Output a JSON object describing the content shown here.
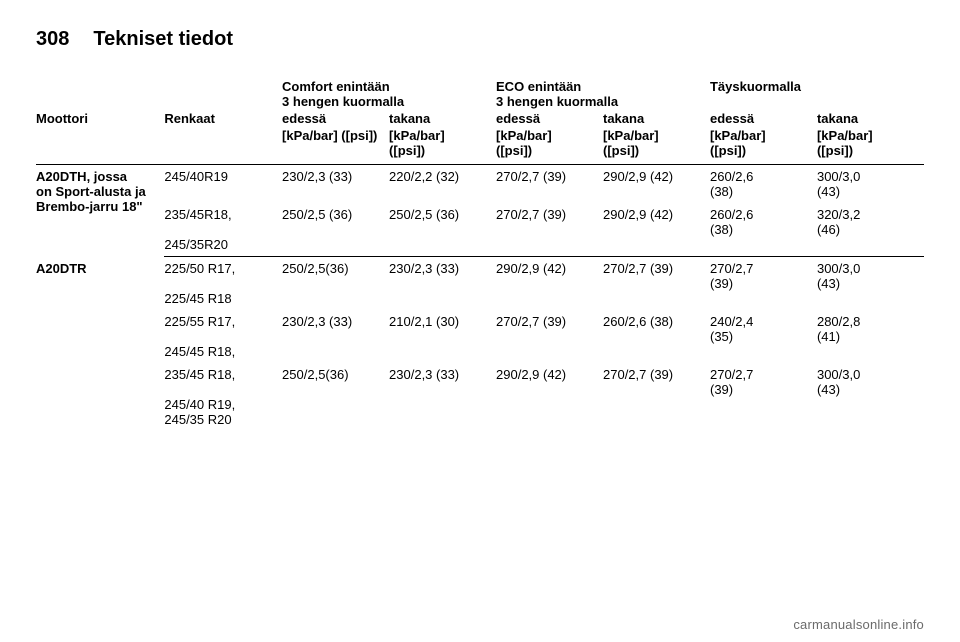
{
  "page": {
    "number": "308",
    "title": "Tekniset tiedot"
  },
  "table": {
    "groupHeaders": {
      "comfort": "Comfort enintään\n3 hengen kuormalla",
      "eco": "ECO enintään\n3 hengen kuormalla",
      "full": "Täyskuormalla"
    },
    "colHeaders": {
      "engine": "Moottori",
      "tyres": "Renkaat",
      "front": "edessä",
      "rear": "takana"
    },
    "unit": "[kPa/bar] ([psi])",
    "unitShort": "[kPa/bar]\n([psi])",
    "rows": [
      {
        "engine": "A20DTH, jossa\non Sport-alusta ja\nBrembo-jarru 18\"",
        "tyres": "245/40R19",
        "c_f": "230/2,3 (33)",
        "c_r": "220/2,2 (32)",
        "e_f": "270/2,7 (39)",
        "e_r": "290/2,9 (42)",
        "f_f": "260/2,6\n(38)",
        "f_r": "300/3,0\n(43)"
      },
      {
        "engine": "",
        "tyres": "235/45R18,\n\n245/35R20",
        "c_f": "250/2,5 (36)",
        "c_r": "250/2,5 (36)",
        "e_f": "270/2,7 (39)",
        "e_r": "290/2,9 (42)",
        "f_f": "260/2,6\n(38)",
        "f_r": "320/3,2\n(46)"
      },
      {
        "engine": "A20DTR",
        "tyres": "225/50 R17,\n\n225/45 R18",
        "c_f": "250/2,5(36)",
        "c_r": "230/2,3 (33)",
        "e_f": "290/2,9 (42)",
        "e_r": "270/2,7 (39)",
        "f_f": "270/2,7\n(39)",
        "f_r": "300/3,0\n(43)"
      },
      {
        "engine": "",
        "tyres": "225/55 R17,\n\n245/45 R18,",
        "c_f": "230/2,3 (33)",
        "c_r": "210/2,1 (30)",
        "e_f": "270/2,7 (39)",
        "e_r": "260/2,6 (38)",
        "f_f": "240/2,4\n(35)",
        "f_r": "280/2,8\n(41)"
      },
      {
        "engine": "",
        "tyres": "235/45 R18,\n\n245/40 R19,\n245/35 R20",
        "c_f": "250/2,5(36)",
        "c_r": "230/2,3 (33)",
        "e_f": "290/2,9 (42)",
        "e_r": "270/2,7 (39)",
        "f_f": "270/2,7\n(39)",
        "f_r": "300/3,0\n(43)"
      }
    ]
  },
  "footer": "carmanualsonline.info"
}
